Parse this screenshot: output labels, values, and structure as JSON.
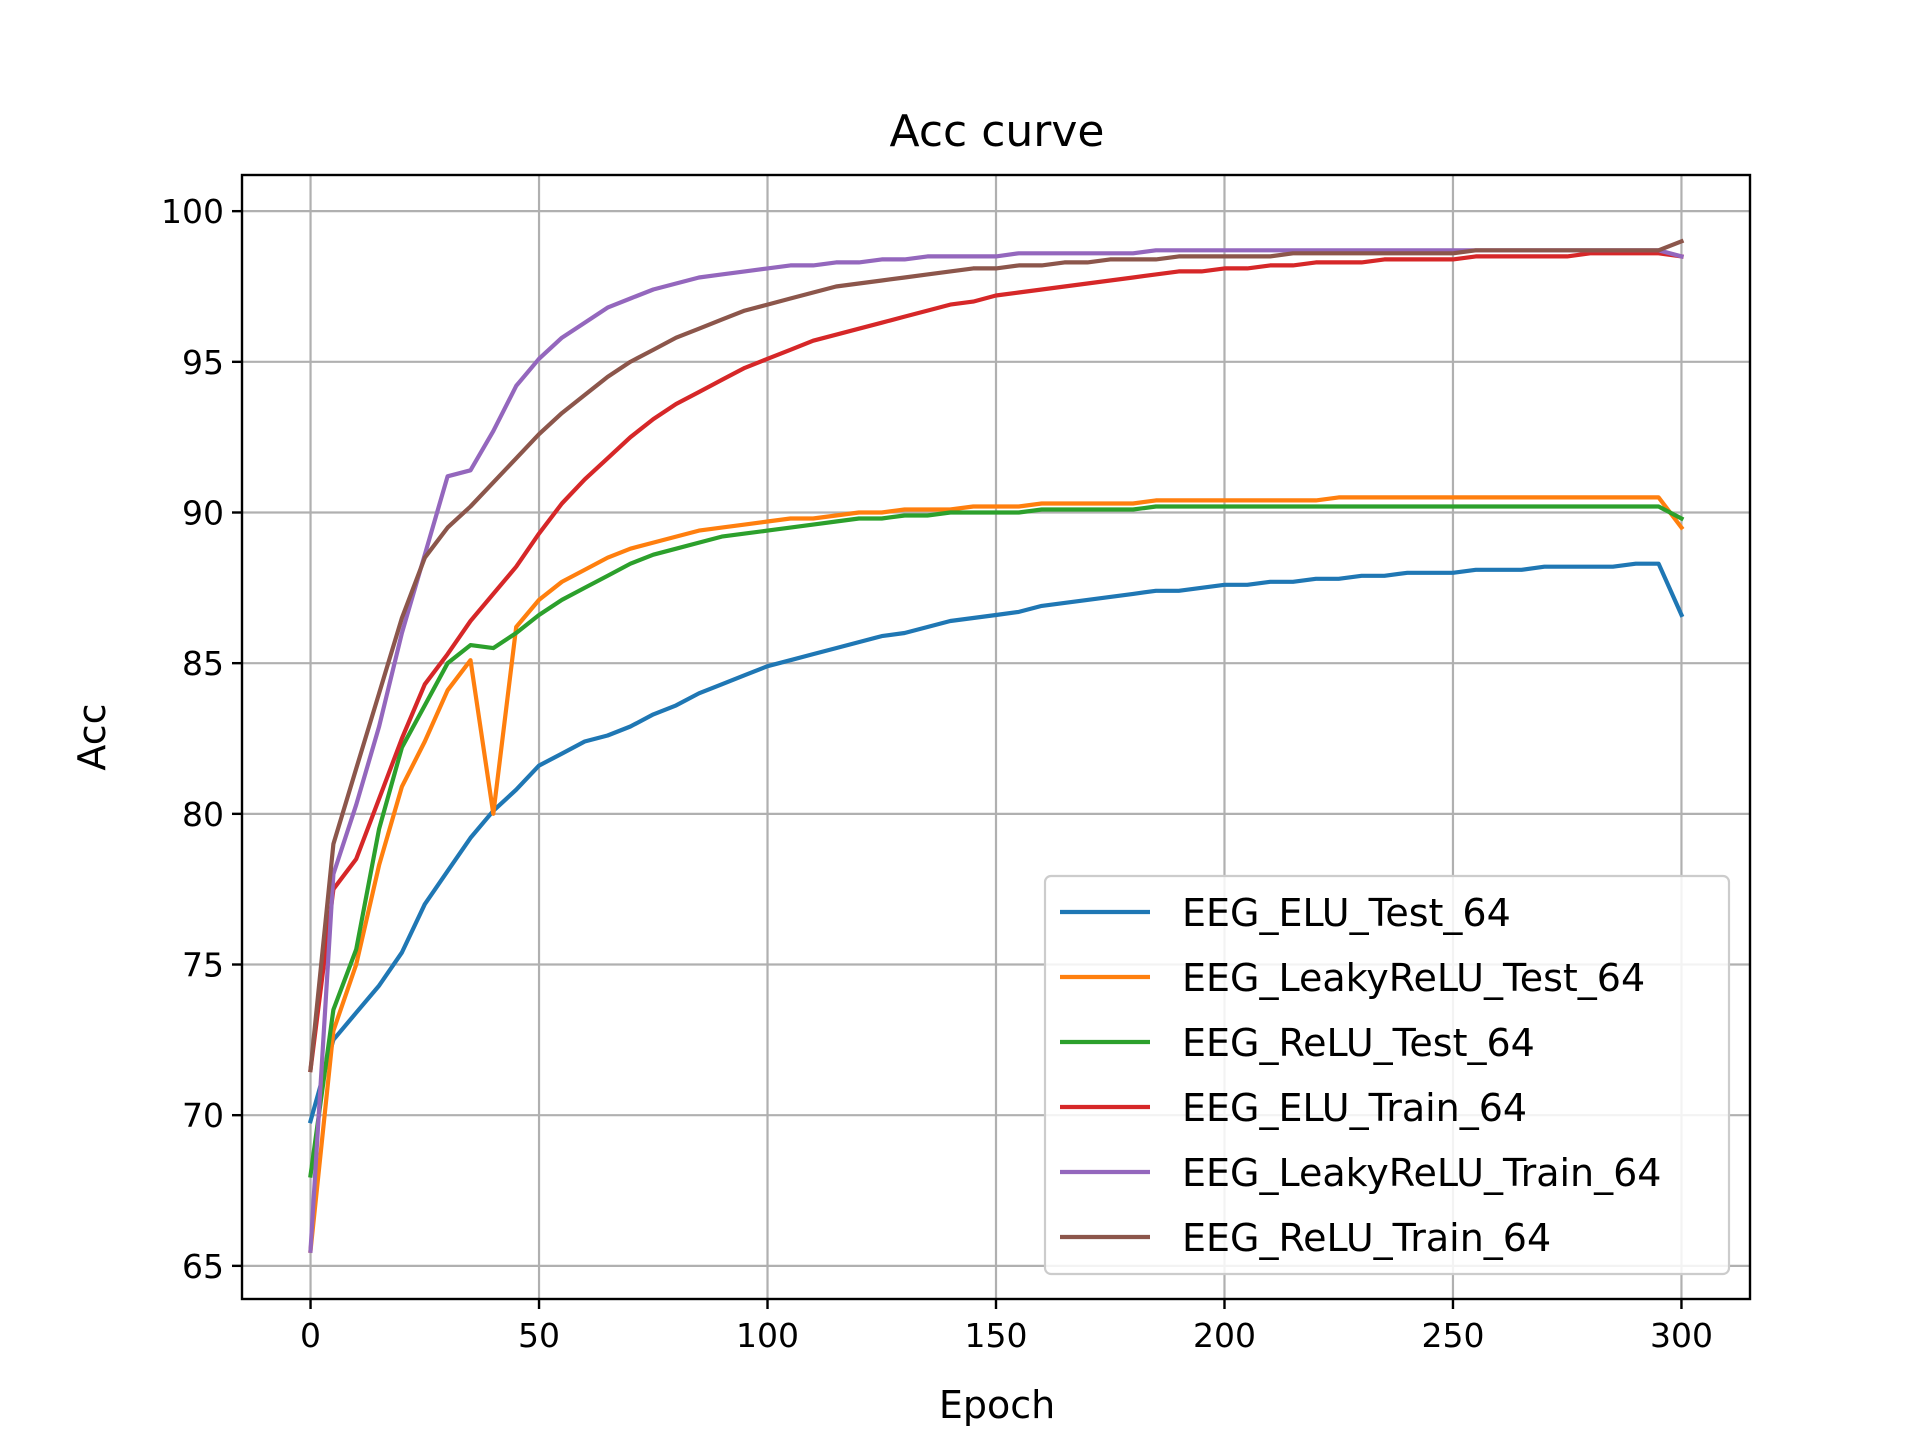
{
  "chart_data": {
    "type": "line",
    "title": "Acc curve",
    "xlabel": "Epoch",
    "ylabel": "Acc",
    "xlim": [
      -15,
      315
    ],
    "ylim": [
      63.9,
      101.2
    ],
    "xticks": [
      0,
      50,
      100,
      150,
      200,
      250,
      300
    ],
    "yticks": [
      65,
      70,
      75,
      80,
      85,
      90,
      95,
      100
    ],
    "grid": true,
    "legend_position": "lower right",
    "x_step": 5,
    "series": [
      {
        "name": "EEG_ELU_Test_64",
        "color": "#1f77b4",
        "values": [
          69.8,
          72.5,
          73.4,
          74.3,
          75.4,
          77.0,
          78.1,
          79.2,
          80.1,
          80.8,
          81.6,
          82.0,
          82.4,
          82.6,
          82.9,
          83.3,
          83.6,
          84.0,
          84.3,
          84.6,
          84.9,
          85.1,
          85.3,
          85.5,
          85.7,
          85.9,
          86.0,
          86.2,
          86.4,
          86.5,
          86.6,
          86.7,
          86.9,
          87.0,
          87.1,
          87.2,
          87.3,
          87.4,
          87.4,
          87.5,
          87.6,
          87.6,
          87.7,
          87.7,
          87.8,
          87.8,
          87.9,
          87.9,
          88.0,
          88.0,
          88.0,
          88.1,
          88.1,
          88.1,
          88.2,
          88.2,
          88.2,
          88.2,
          88.3,
          88.3,
          86.6
        ]
      },
      {
        "name": "EEG_LeakyReLU_Test_64",
        "color": "#ff7f0e",
        "values": [
          65.5,
          72.8,
          75.0,
          78.3,
          80.9,
          82.4,
          84.1,
          85.1,
          80.0,
          86.2,
          87.1,
          87.7,
          88.1,
          88.5,
          88.8,
          89.0,
          89.2,
          89.4,
          89.5,
          89.6,
          89.7,
          89.8,
          89.8,
          89.9,
          90.0,
          90.0,
          90.1,
          90.1,
          90.1,
          90.2,
          90.2,
          90.2,
          90.3,
          90.3,
          90.3,
          90.3,
          90.3,
          90.4,
          90.4,
          90.4,
          90.4,
          90.4,
          90.4,
          90.4,
          90.4,
          90.5,
          90.5,
          90.5,
          90.5,
          90.5,
          90.5,
          90.5,
          90.5,
          90.5,
          90.5,
          90.5,
          90.5,
          90.5,
          90.5,
          90.5,
          89.5
        ]
      },
      {
        "name": "EEG_ReLU_Test_64",
        "color": "#2ca02c",
        "values": [
          68.0,
          73.5,
          75.5,
          79.5,
          82.2,
          83.6,
          85.0,
          85.6,
          85.5,
          86.0,
          86.6,
          87.1,
          87.5,
          87.9,
          88.3,
          88.6,
          88.8,
          89.0,
          89.2,
          89.3,
          89.4,
          89.5,
          89.6,
          89.7,
          89.8,
          89.8,
          89.9,
          89.9,
          90.0,
          90.0,
          90.0,
          90.0,
          90.1,
          90.1,
          90.1,
          90.1,
          90.1,
          90.2,
          90.2,
          90.2,
          90.2,
          90.2,
          90.2,
          90.2,
          90.2,
          90.2,
          90.2,
          90.2,
          90.2,
          90.2,
          90.2,
          90.2,
          90.2,
          90.2,
          90.2,
          90.2,
          90.2,
          90.2,
          90.2,
          90.2,
          89.8
        ]
      },
      {
        "name": "EEG_ELU_Train_64",
        "color": "#d62728",
        "values": [
          71.5,
          77.5,
          78.5,
          80.5,
          82.5,
          84.3,
          85.3,
          86.4,
          87.3,
          88.2,
          89.3,
          90.3,
          91.1,
          91.8,
          92.5,
          93.1,
          93.6,
          94.0,
          94.4,
          94.8,
          95.1,
          95.4,
          95.7,
          95.9,
          96.1,
          96.3,
          96.5,
          96.7,
          96.9,
          97.0,
          97.2,
          97.3,
          97.4,
          97.5,
          97.6,
          97.7,
          97.8,
          97.9,
          98.0,
          98.0,
          98.1,
          98.1,
          98.2,
          98.2,
          98.3,
          98.3,
          98.3,
          98.4,
          98.4,
          98.4,
          98.4,
          98.5,
          98.5,
          98.5,
          98.5,
          98.5,
          98.6,
          98.6,
          98.6,
          98.6,
          98.5
        ]
      },
      {
        "name": "EEG_LeakyReLU_Train_64",
        "color": "#9467bd",
        "values": [
          65.5,
          78.0,
          80.3,
          82.9,
          86.0,
          88.6,
          91.2,
          91.4,
          92.7,
          94.2,
          95.1,
          95.8,
          96.3,
          96.8,
          97.1,
          97.4,
          97.6,
          97.8,
          97.9,
          98.0,
          98.1,
          98.2,
          98.2,
          98.3,
          98.3,
          98.4,
          98.4,
          98.5,
          98.5,
          98.5,
          98.5,
          98.6,
          98.6,
          98.6,
          98.6,
          98.6,
          98.6,
          98.7,
          98.7,
          98.7,
          98.7,
          98.7,
          98.7,
          98.7,
          98.7,
          98.7,
          98.7,
          98.7,
          98.7,
          98.7,
          98.7,
          98.7,
          98.7,
          98.7,
          98.7,
          98.7,
          98.7,
          98.7,
          98.7,
          98.7,
          98.5
        ]
      },
      {
        "name": "EEG_ReLU_Train_64",
        "color": "#8c564b",
        "values": [
          71.5,
          79.0,
          81.5,
          84.0,
          86.5,
          88.5,
          89.5,
          90.2,
          91.0,
          91.8,
          92.6,
          93.3,
          93.9,
          94.5,
          95.0,
          95.4,
          95.8,
          96.1,
          96.4,
          96.7,
          96.9,
          97.1,
          97.3,
          97.5,
          97.6,
          97.7,
          97.8,
          97.9,
          98.0,
          98.1,
          98.1,
          98.2,
          98.2,
          98.3,
          98.3,
          98.4,
          98.4,
          98.4,
          98.5,
          98.5,
          98.5,
          98.5,
          98.5,
          98.6,
          98.6,
          98.6,
          98.6,
          98.6,
          98.6,
          98.6,
          98.6,
          98.7,
          98.7,
          98.7,
          98.7,
          98.7,
          98.7,
          98.7,
          98.7,
          98.7,
          99.0
        ]
      }
    ]
  }
}
